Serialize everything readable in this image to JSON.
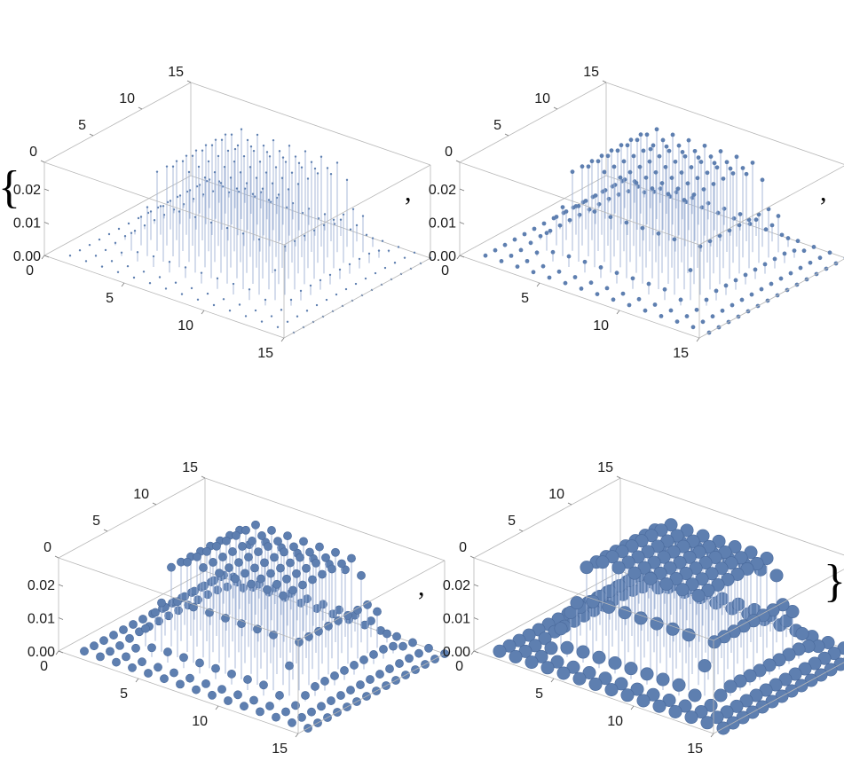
{
  "punctuation": {
    "open_brace": "{",
    "close_brace": "}",
    "comma": ","
  },
  "chart_data": [
    {
      "type": "scatter3d-stem",
      "x_ticks": [
        "0",
        "5",
        "10",
        "15"
      ],
      "y_ticks": [
        "0",
        "5",
        "10",
        "15"
      ],
      "z_ticks": [
        "0.00",
        "0.01",
        "0.02"
      ],
      "xlim": [
        0,
        15
      ],
      "ylim": [
        0,
        15
      ],
      "zlim": [
        0,
        0.028
      ],
      "grid": "15x15 points at integer x,y (1..15)",
      "z_function": "bump ~0.027 peak, plateau over x in [3,12], y in [4,13]",
      "marker": "tiny",
      "color": "#5e7fb0"
    },
    {
      "type": "scatter3d-stem",
      "x_ticks": [
        "0",
        "5",
        "10",
        "15"
      ],
      "y_ticks": [
        "0",
        "5",
        "10",
        "15"
      ],
      "z_ticks": [
        "0.00",
        "0.01",
        "0.02"
      ],
      "xlim": [
        0,
        15
      ],
      "ylim": [
        0,
        15
      ],
      "zlim": [
        0,
        0.028
      ],
      "marker": "small",
      "color": "#5e7fb0"
    },
    {
      "type": "scatter3d-stem",
      "x_ticks": [
        "0",
        "5",
        "10",
        "15"
      ],
      "y_ticks": [
        "0",
        "5",
        "10",
        "15"
      ],
      "z_ticks": [
        "0.00",
        "0.01",
        "0.02"
      ],
      "xlim": [
        0,
        15
      ],
      "ylim": [
        0,
        15
      ],
      "zlim": [
        0,
        0.028
      ],
      "marker": "medium",
      "color": "#5e7fb0"
    },
    {
      "type": "scatter3d-stem",
      "x_ticks": [
        "0",
        "5",
        "10",
        "15"
      ],
      "y_ticks": [
        "0",
        "5",
        "10",
        "15"
      ],
      "z_ticks": [
        "0.00",
        "0.01",
        "0.02"
      ],
      "xlim": [
        0,
        15
      ],
      "ylim": [
        0,
        15
      ],
      "zlim": [
        0,
        0.028
      ],
      "marker": "large",
      "color": "#5e7fb0"
    }
  ]
}
